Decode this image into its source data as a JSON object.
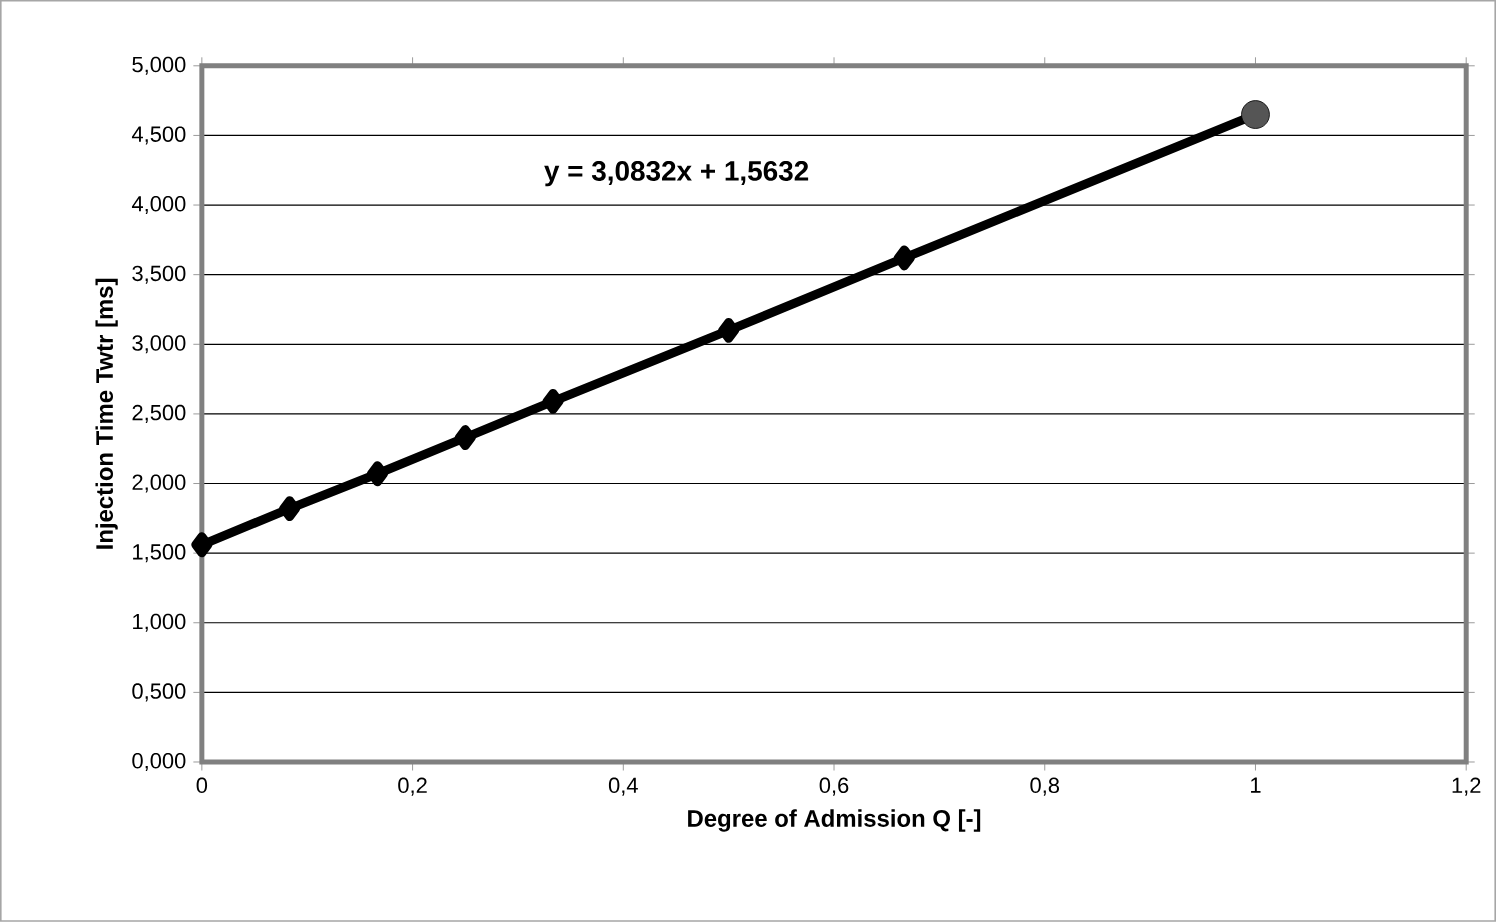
{
  "chart_data": {
    "type": "line",
    "xlabel": "Degree of Admission Q [-]",
    "ylabel": "Injection Time Twtr [ms]",
    "annotations": [
      "y = 3,0832x + 1,5632"
    ],
    "series": [
      {
        "color": "#000000",
        "x": [
          0,
          0.0833,
          0.1667,
          0.25,
          0.3333,
          0.5,
          0.6667,
          1
        ],
        "values": [
          1.56,
          1.82,
          2.07,
          2.33,
          2.59,
          3.1,
          3.62,
          4.65
        ],
        "marker": "diamond"
      },
      {
        "type": "scatter",
        "color": "#555555",
        "x": [
          1
        ],
        "values": [
          4.65
        ],
        "marker": "circle"
      }
    ],
    "xlim": [
      0,
      1.2
    ],
    "ylim": [
      0,
      5
    ],
    "xticks": [
      0,
      {
        "value": 0.2,
        "label": "0,2"
      },
      {
        "value": 0.4,
        "label": "0,4"
      },
      {
        "value": 0.6,
        "label": "0,6"
      },
      {
        "value": 0.8,
        "label": "0,8"
      },
      1,
      {
        "value": 1.2,
        "label": "1,2"
      }
    ],
    "yticks": [
      {
        "value": 0,
        "label": "0,000"
      },
      {
        "value": 0.5,
        "label": "0,500"
      },
      {
        "value": 1,
        "label": "1,000"
      },
      {
        "value": 1.5,
        "label": "1,500"
      },
      {
        "value": 2,
        "label": "2,000"
      },
      {
        "value": 2.5,
        "label": "2,500"
      },
      {
        "value": 3,
        "label": "3,000"
      },
      {
        "value": 3.5,
        "label": "3,500"
      },
      {
        "value": 4,
        "label": "4,000"
      },
      {
        "value": 4.5,
        "label": "4,500"
      },
      {
        "value": 5,
        "label": "5,000"
      }
    ],
    "grid": "y",
    "line_style": "solid"
  }
}
